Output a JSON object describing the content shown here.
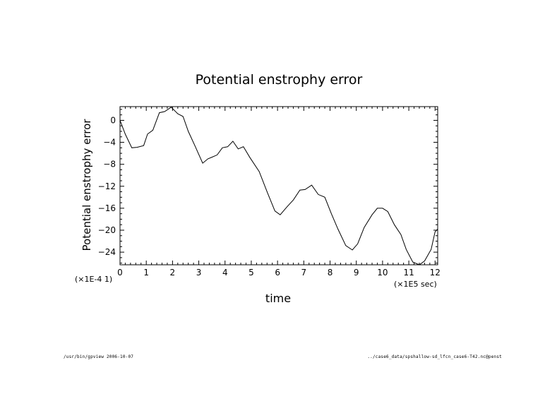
{
  "chart_data": {
    "type": "line",
    "title": "Potential enstrophy error",
    "xlabel": "time",
    "ylabel": "Potential enstrophy error",
    "x_scale_label": "(×1E5 sec)",
    "y_scale_label": "(×1E-4 1)",
    "xlim": [
      0,
      12.1
    ],
    "ylim": [
      -26.3,
      2.5
    ],
    "xticks": [
      0,
      1,
      2,
      3,
      4,
      5,
      6,
      7,
      8,
      9,
      10,
      11,
      12
    ],
    "yticks": [
      0,
      -4,
      -8,
      -12,
      -16,
      -20,
      -24
    ],
    "grid": false,
    "series": [
      {
        "x": [
          0,
          0.2,
          0.45,
          0.65,
          0.9,
          1.05,
          1.25,
          1.5,
          1.7,
          1.95,
          2.2,
          2.4,
          2.6,
          2.85,
          3.15,
          3.35,
          3.5,
          3.7,
          3.9,
          4.1,
          4.3,
          4.5,
          4.7,
          4.95,
          5.3,
          5.6,
          5.9,
          6.1,
          6.35,
          6.6,
          6.85,
          7.05,
          7.3,
          7.55,
          7.8,
          8.05,
          8.3,
          8.6,
          8.85,
          9.05,
          9.3,
          9.6,
          9.8,
          10.0,
          10.2,
          10.45,
          10.7,
          10.9,
          11.15,
          11.4,
          11.6,
          11.85,
          12.0,
          12.1
        ],
        "y": [
          0,
          -2.5,
          -5.0,
          -4.9,
          -4.6,
          -2.5,
          -1.8,
          1.4,
          1.6,
          2.4,
          1.2,
          0.7,
          -2.0,
          -4.6,
          -7.8,
          -7.0,
          -6.7,
          -6.3,
          -5.0,
          -4.8,
          -3.8,
          -5.2,
          -4.8,
          -6.8,
          -9.3,
          -13.0,
          -16.5,
          -17.2,
          -15.8,
          -14.5,
          -12.7,
          -12.6,
          -11.8,
          -13.5,
          -14.0,
          -17.0,
          -19.8,
          -22.8,
          -23.6,
          -22.5,
          -19.5,
          -17.2,
          -16.0,
          -16.0,
          -16.6,
          -19.0,
          -20.8,
          -23.5,
          -25.8,
          -26.3,
          -25.6,
          -23.5,
          -20.3,
          -19.8
        ]
      }
    ]
  },
  "footer": {
    "left": "/usr/bin/gpview  2006-10-07",
    "right": "../case6_data/spshallow-sd_lfcn_case6-T42.nc@penst"
  }
}
